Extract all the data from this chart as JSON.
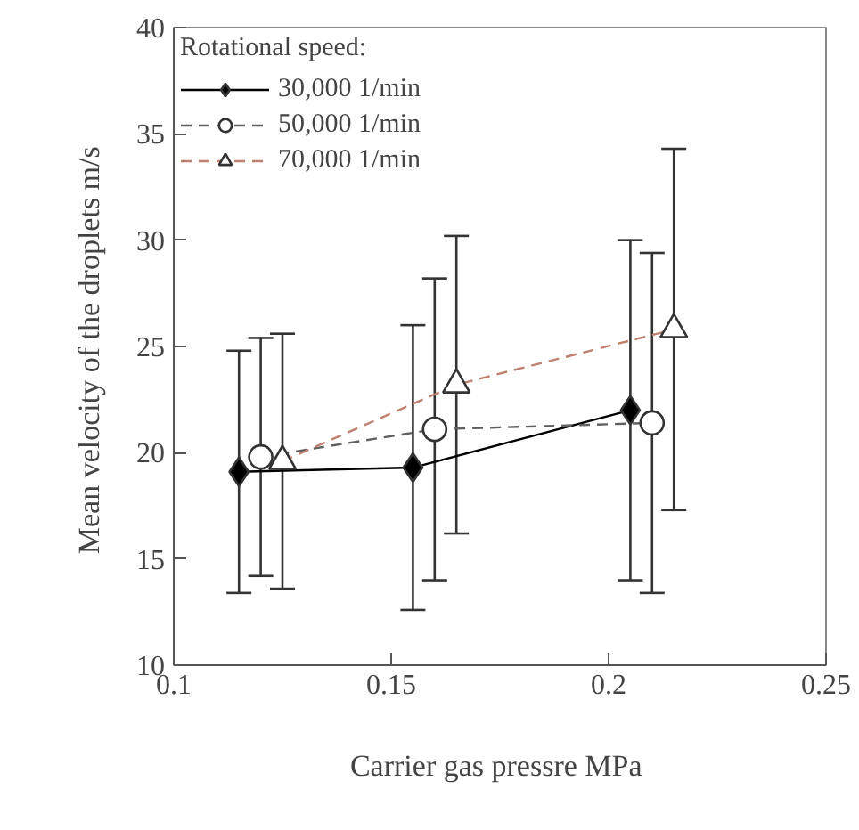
{
  "chart_data": {
    "type": "line",
    "xlabel": "Carrier gas pressre  MPa",
    "ylabel": "Mean velocity of the droplets  m/s",
    "legend_title": "Rotational speed:",
    "xlim": [
      0.1,
      0.25
    ],
    "xticks": [
      0.1,
      0.15,
      0.2,
      0.25
    ],
    "ylim": [
      10,
      40
    ],
    "yticks": [
      10,
      15,
      20,
      25,
      30,
      35,
      40
    ],
    "grid": false,
    "legend": "top left",
    "series": [
      {
        "name": "30,000 1/min",
        "color": "#000000",
        "marker": "diamond",
        "line_style": "solid",
        "x": [
          0.115,
          0.155,
          0.205
        ],
        "values": [
          19.1,
          19.3,
          22.0
        ],
        "errors": [
          5.7,
          6.7,
          8.0
        ]
      },
      {
        "name": "50,000 1/min",
        "color": "#606060",
        "marker": "circle",
        "line_style": "dashed",
        "x": [
          0.12,
          0.16,
          0.21
        ],
        "values": [
          19.8,
          21.1,
          21.4
        ],
        "errors": [
          5.6,
          7.1,
          8.0
        ]
      },
      {
        "name": "70,000 1/min",
        "color": "#c08070",
        "marker": "triangle",
        "line_style": "dashed",
        "x": [
          0.125,
          0.165,
          0.215
        ],
        "values": [
          19.6,
          23.2,
          25.8
        ],
        "errors": [
          6.0,
          7.0,
          8.5
        ]
      }
    ]
  }
}
